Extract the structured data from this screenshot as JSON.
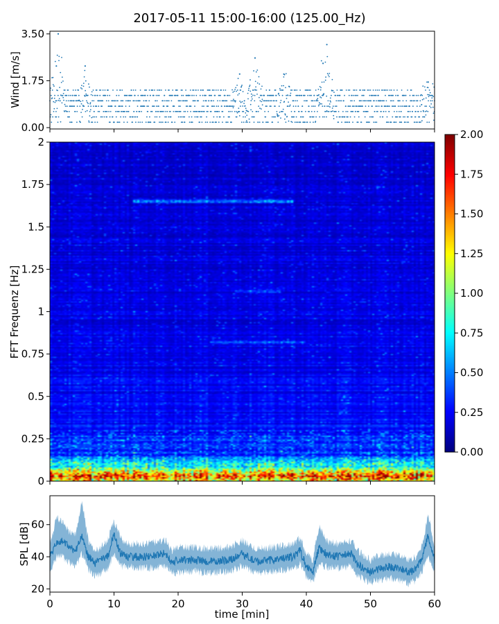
{
  "title": "2017-05-11 15:00-16:00 (125.00_Hz)",
  "colors": {
    "series": "#1f77b4",
    "axis": "#000000",
    "colormap": [
      "#00007f",
      "#0000ff",
      "#007fff",
      "#00ffff",
      "#7fff7f",
      "#ffff00",
      "#ff7f00",
      "#ff0000",
      "#7f0000"
    ]
  },
  "chart_data": [
    {
      "id": "wind",
      "type": "scatter",
      "ylabel": "Wind [m/s]",
      "xlim": [
        0,
        60
      ],
      "ylim": [
        -0.05,
        3.6
      ],
      "yticks": [
        0.0,
        1.75,
        3.5
      ],
      "ytick_labels": [
        "0.00",
        "1.75",
        "3.50"
      ],
      "point_interval_min": 0.04,
      "baseline_levels": [
        0.2,
        0.4,
        0.6,
        0.8,
        1.0,
        1.2,
        1.4
      ],
      "peaks": [
        {
          "x": 1.3,
          "y": 3.5
        },
        {
          "x": 1.0,
          "y": 2.3
        },
        {
          "x": 5.5,
          "y": 2.3
        },
        {
          "x": 29.6,
          "y": 2.0
        },
        {
          "x": 32.0,
          "y": 2.6
        },
        {
          "x": 36.5,
          "y": 2.0
        },
        {
          "x": 43.2,
          "y": 3.1
        },
        {
          "x": 42.6,
          "y": 2.4
        },
        {
          "x": 59.0,
          "y": 1.7
        }
      ]
    },
    {
      "id": "spectrogram",
      "type": "heatmap",
      "ylabel": "FFT Frequenz [Hz]",
      "xlim": [
        0,
        60
      ],
      "ylim": [
        0,
        2
      ],
      "yticks": [
        0,
        0.25,
        0.5,
        0.75,
        1,
        1.25,
        1.5,
        1.75,
        2
      ],
      "ytick_labels": [
        "0",
        "0.25",
        "0.5",
        "0.75",
        "1",
        "1.25",
        "1.5",
        "1.75",
        "2"
      ],
      "colorbar": {
        "vmin": 0.0,
        "vmax": 2.0,
        "ticks": [
          0.0,
          0.25,
          0.5,
          0.75,
          1.0,
          1.25,
          1.5,
          1.75,
          2.0
        ],
        "tick_labels": [
          "0.00",
          "0.25",
          "0.50",
          "0.75",
          "1.00",
          "1.25",
          "1.50",
          "1.75",
          "2.00"
        ]
      },
      "features": [
        {
          "freq_hz": 0.03,
          "from_min": 0,
          "to_min": 60,
          "level": 1.9
        },
        {
          "freq_hz": 0.1,
          "from_min": 0,
          "to_min": 60,
          "level": 0.9
        },
        {
          "freq_hz": 1.65,
          "from_min": 13,
          "to_min": 38,
          "level": 0.7
        },
        {
          "freq_hz": 0.82,
          "from_min": 25,
          "to_min": 40,
          "level": 0.55
        },
        {
          "freq_hz": 1.12,
          "from_min": 29,
          "to_min": 36,
          "level": 0.55
        }
      ]
    },
    {
      "id": "spl",
      "type": "area",
      "ylabel": "SPL [dB]",
      "xlabel": "time [min]",
      "xlim": [
        0,
        60
      ],
      "ylim": [
        18,
        78
      ],
      "yticks": [
        20,
        40,
        60
      ],
      "ytick_labels": [
        "20",
        "40",
        "60"
      ],
      "xticks": [
        0,
        10,
        20,
        30,
        40,
        50,
        60
      ],
      "xtick_labels": [
        "0",
        "10",
        "20",
        "30",
        "40",
        "50",
        "60"
      ],
      "envelope": {
        "x": [
          0,
          1,
          2,
          3,
          4,
          5,
          6,
          7,
          8,
          9,
          10,
          11,
          12,
          15,
          18,
          19,
          20,
          22,
          25,
          28,
          30,
          32,
          35,
          38,
          39,
          40,
          41,
          42,
          43,
          45,
          47,
          48,
          50,
          51,
          53,
          55,
          56,
          57,
          58,
          59,
          60
        ],
        "mid": [
          40,
          48,
          50,
          46,
          44,
          52,
          40,
          36,
          38,
          40,
          54,
          42,
          40,
          40,
          42,
          36,
          38,
          38,
          37,
          38,
          42,
          37,
          38,
          40,
          44,
          34,
          30,
          46,
          42,
          40,
          42,
          35,
          30,
          32,
          34,
          32,
          30,
          32,
          38,
          54,
          38
        ],
        "low": [
          30,
          40,
          40,
          36,
          34,
          42,
          32,
          28,
          30,
          32,
          42,
          34,
          34,
          33,
          34,
          30,
          30,
          31,
          30,
          31,
          34,
          30,
          31,
          32,
          36,
          28,
          24,
          36,
          34,
          33,
          34,
          28,
          24,
          25,
          27,
          25,
          23,
          25,
          30,
          40,
          31
        ],
        "high": [
          48,
          64,
          62,
          56,
          54,
          74,
          50,
          44,
          46,
          50,
          62,
          52,
          48,
          48,
          50,
          44,
          46,
          46,
          45,
          46,
          50,
          45,
          46,
          48,
          52,
          42,
          38,
          60,
          50,
          48,
          50,
          44,
          38,
          40,
          42,
          40,
          38,
          40,
          46,
          66,
          46
        ]
      }
    }
  ]
}
